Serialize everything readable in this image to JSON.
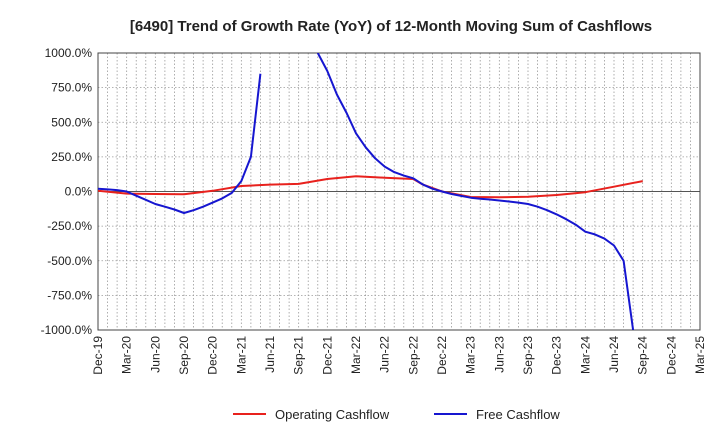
{
  "chart_data": {
    "type": "line",
    "title": "[6490]  Trend of Growth Rate (YoY) of 12-Month Moving Sum of Cashflows",
    "xlabel": "",
    "ylabel": "",
    "ylim": [
      -1000,
      1000
    ],
    "y_ticks": [
      {
        "value": 1000,
        "label": "1000.0%"
      },
      {
        "value": 750,
        "label": "750.0%"
      },
      {
        "value": 500,
        "label": "500.0%"
      },
      {
        "value": 250,
        "label": "250.0%"
      },
      {
        "value": 0,
        "label": "0.0%"
      },
      {
        "value": -250,
        "label": "-250.0%"
      },
      {
        "value": -500,
        "label": "-500.0%"
      },
      {
        "value": -750,
        "label": "-750.0%"
      },
      {
        "value": -1000,
        "label": "-1000.0%"
      }
    ],
    "x_ticks": [
      "Dec-19",
      "Mar-20",
      "Jun-20",
      "Sep-20",
      "Dec-20",
      "Mar-21",
      "Jun-21",
      "Sep-21",
      "Dec-21",
      "Mar-22",
      "Jun-22",
      "Sep-22",
      "Dec-22",
      "Mar-23",
      "Jun-23",
      "Sep-23",
      "Dec-23",
      "Mar-24",
      "Jun-24",
      "Sep-24",
      "Dec-24",
      "Mar-25"
    ],
    "x_start": "Dec-19",
    "x_end": "Mar-25",
    "grid": true,
    "legend_position": "bottom",
    "series": [
      {
        "name": "Operating Cashflow",
        "color": "#e8211d",
        "points": [
          [
            "Dec-19",
            5
          ],
          [
            "Mar-20",
            -15
          ],
          [
            "Jun-20",
            -18
          ],
          [
            "Sep-20",
            -20
          ],
          [
            "Dec-20",
            5
          ],
          [
            "Mar-21",
            40
          ],
          [
            "Jun-21",
            50
          ],
          [
            "Sep-21",
            55
          ],
          [
            "Dec-21",
            90
          ],
          [
            "Mar-22",
            110
          ],
          [
            "Jun-22",
            100
          ],
          [
            "Sep-22",
            90
          ],
          [
            "Oct-22",
            50
          ],
          [
            "Dec-22",
            0
          ],
          [
            "Mar-23",
            -40
          ],
          [
            "Jun-23",
            -42
          ],
          [
            "Sep-23",
            -38
          ],
          [
            "Dec-23",
            -25
          ],
          [
            "Mar-24",
            -5
          ],
          [
            "Jun-24",
            35
          ],
          [
            "Sep-24",
            75
          ]
        ]
      },
      {
        "name": "Free Cashflow",
        "color": "#1616d0",
        "segments": [
          [
            [
              "Dec-19",
              20
            ],
            [
              "Jan-20",
              15
            ],
            [
              "Feb-20",
              10
            ],
            [
              "Mar-20",
              0
            ],
            [
              "Apr-20",
              -30
            ],
            [
              "May-20",
              -60
            ],
            [
              "Jun-20",
              -90
            ],
            [
              "Jul-20",
              -110
            ],
            [
              "Aug-20",
              -130
            ],
            [
              "Sep-20",
              -155
            ],
            [
              "Oct-20",
              -135
            ],
            [
              "Nov-20",
              -110
            ],
            [
              "Dec-20",
              -80
            ],
            [
              "Jan-21",
              -50
            ],
            [
              "Feb-21",
              -10
            ],
            [
              "Mar-21",
              75
            ],
            [
              "Apr-21",
              250
            ],
            [
              "May-21",
              850
            ]
          ],
          [
            [
              "Nov-21",
              1000
            ],
            [
              "Dec-21",
              870
            ],
            [
              "Jan-22",
              700
            ],
            [
              "Feb-22",
              570
            ],
            [
              "Mar-22",
              420
            ],
            [
              "Apr-22",
              320
            ],
            [
              "May-22",
              240
            ],
            [
              "Jun-22",
              180
            ],
            [
              "Jul-22",
              140
            ],
            [
              "Aug-22",
              115
            ],
            [
              "Sep-22",
              95
            ],
            [
              "Oct-22",
              50
            ],
            [
              "Nov-22",
              20
            ],
            [
              "Dec-22",
              0
            ],
            [
              "Jan-23",
              -18
            ],
            [
              "Feb-23",
              -32
            ],
            [
              "Mar-23",
              -45
            ],
            [
              "Apr-23",
              -52
            ],
            [
              "May-23",
              -58
            ],
            [
              "Jun-23",
              -65
            ],
            [
              "Jul-23",
              -72
            ],
            [
              "Aug-23",
              -80
            ],
            [
              "Sep-23",
              -90
            ],
            [
              "Oct-23",
              -110
            ],
            [
              "Nov-23",
              -135
            ],
            [
              "Dec-23",
              -165
            ],
            [
              "Jan-24",
              -200
            ],
            [
              "Feb-24",
              -240
            ],
            [
              "Mar-24",
              -290
            ],
            [
              "Apr-24",
              -310
            ],
            [
              "May-24",
              -340
            ],
            [
              "Jun-24",
              -390
            ],
            [
              "Jul-24",
              -500
            ],
            [
              "Aug-24",
              -1000
            ]
          ]
        ]
      }
    ]
  }
}
